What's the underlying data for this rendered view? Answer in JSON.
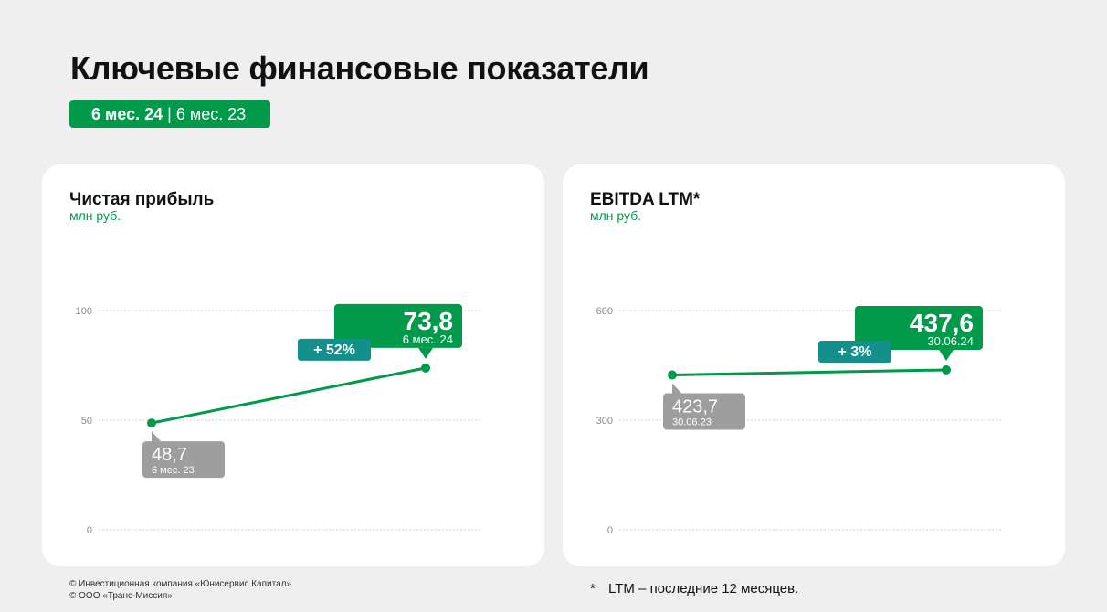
{
  "header": {
    "title": "Ключевые финансовые показатели",
    "period_current": "6 мес. 24",
    "period_separator": " | ",
    "period_previous": "6 мес. 23"
  },
  "colors": {
    "green": "#009a4a",
    "teal": "#14908c",
    "gray": "#9e9e9e",
    "grid": "#cfcfcf"
  },
  "chart_data": [
    {
      "type": "line",
      "title": "Чистая прибыль",
      "ylabel": "млн руб.",
      "ylim": [
        0,
        100
      ],
      "yticks": [
        0,
        50,
        100
      ],
      "grid": true,
      "points": [
        {
          "value": 48.7,
          "value_label": "48,7",
          "period_label": "6 мес. 23",
          "highlight": false
        },
        {
          "value": 73.8,
          "value_label": "73,8",
          "period_label": "6 мес. 24",
          "highlight": true
        }
      ],
      "change_label": "+ 52%"
    },
    {
      "type": "line",
      "title": "EBITDA LTM*",
      "ylabel": "млн руб.",
      "ylim": [
        0,
        600
      ],
      "yticks": [
        0,
        300,
        600
      ],
      "grid": true,
      "points": [
        {
          "value": 423.7,
          "value_label": "423,7",
          "period_label": "30.06.23",
          "highlight": false
        },
        {
          "value": 437.6,
          "value_label": "437,6",
          "period_label": "30.06.24",
          "highlight": true
        }
      ],
      "change_label": "+ 3%"
    }
  ],
  "footer": {
    "copyright_1": "© Инвестиционная компания «Юнисервис Капитал»",
    "copyright_2": "© ООО «Транс-Миссия»",
    "note_mark": "*",
    "note_text": "LTM – последние 12 месяцев."
  }
}
